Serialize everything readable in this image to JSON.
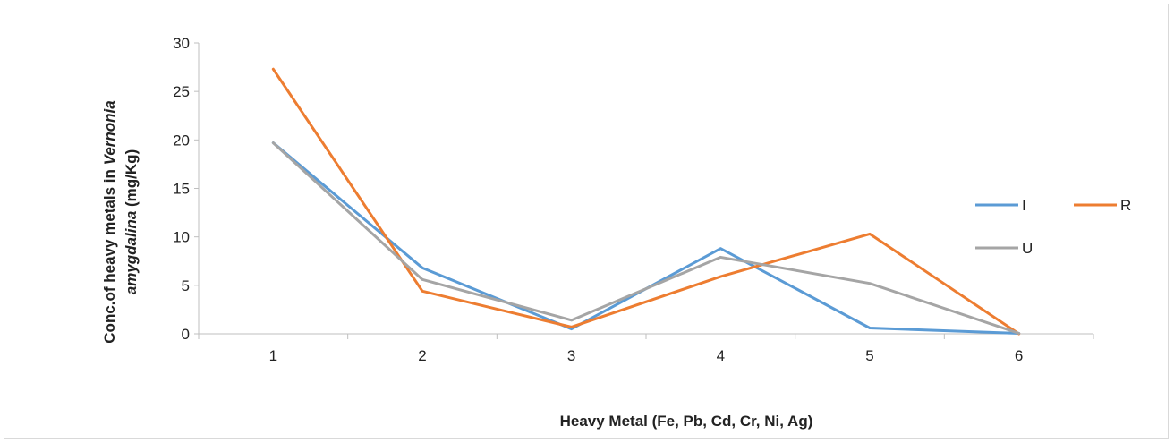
{
  "chart_data": {
    "type": "line",
    "categories": [
      "1",
      "2",
      "3",
      "4",
      "5",
      "6"
    ],
    "xlabel": "Heavy Metal (Fe, Pb, Cd, Cr, Ni, Ag)",
    "ylabel_parts": [
      "Conc.of heavy metals in ",
      "Vernonia",
      "amygdalina",
      " (mg/Kg)"
    ],
    "ylim": [
      0,
      30
    ],
    "yticks": [
      0,
      5,
      10,
      15,
      20,
      25,
      30
    ],
    "grid": false,
    "legend_position": "right",
    "series": [
      {
        "name": "I",
        "color": "#5b9bd5",
        "values": [
          19.7,
          6.8,
          0.5,
          8.8,
          0.6,
          0.05
        ]
      },
      {
        "name": "R",
        "color": "#ed7d31",
        "values": [
          27.3,
          4.4,
          0.7,
          5.9,
          10.3,
          0.0
        ]
      },
      {
        "name": "U",
        "color": "#a5a5a5",
        "values": [
          19.7,
          5.6,
          1.4,
          7.9,
          5.2,
          0.05
        ]
      }
    ]
  }
}
